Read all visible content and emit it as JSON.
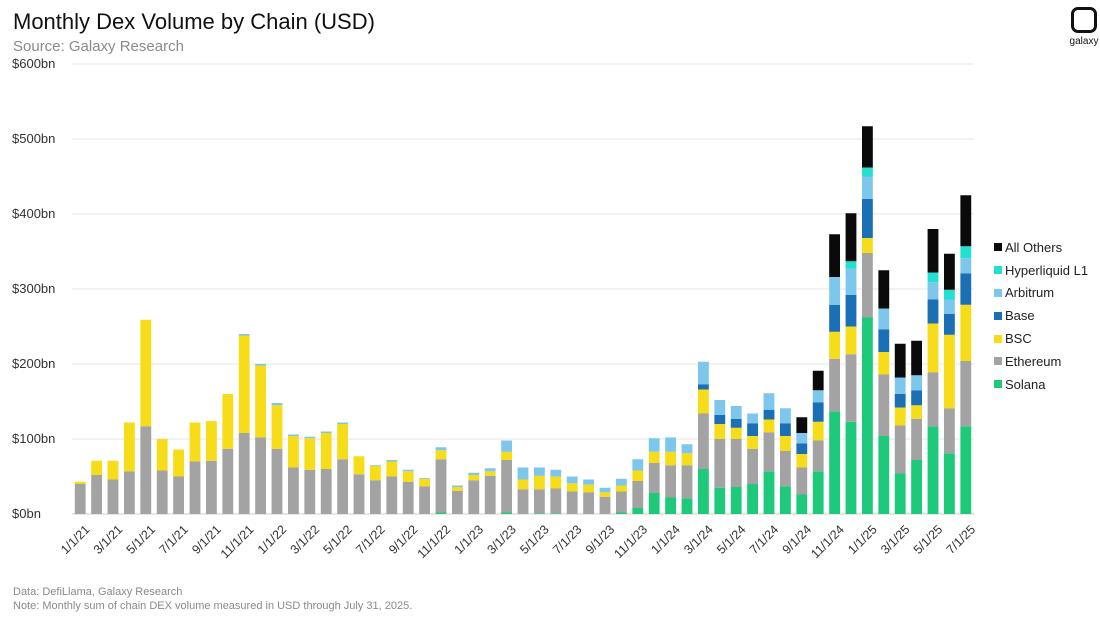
{
  "header": {
    "title": "Monthly Dex Volume by Chain (USD)",
    "subtitle": "Source: Galaxy Research",
    "logo_text": "galaxy"
  },
  "footer": {
    "data_note": "Data: DefiLlama, Galaxy Research",
    "note": "Note: Monthly sum of chain DEX volume measured in USD  through July 31, 2025."
  },
  "chart_data": {
    "type": "bar",
    "stacked": true,
    "title": "Monthly Dex Volume by Chain (USD)",
    "ylim": [
      0,
      600
    ],
    "y_ticks": [
      0,
      100,
      200,
      300,
      400,
      500,
      600
    ],
    "y_tick_labels": [
      "$0bn",
      "$100bn",
      "$200bn",
      "$300bn",
      "$400bn",
      "$500bn",
      "$600bn"
    ],
    "gridlines": true,
    "legend_position": "right",
    "categories": [
      "1/1/21",
      "2/1/21",
      "3/1/21",
      "4/1/21",
      "5/1/21",
      "6/1/21",
      "7/1/21",
      "8/1/21",
      "9/1/21",
      "10/1/21",
      "11/1/21",
      "12/1/21",
      "1/1/22",
      "2/1/22",
      "3/1/22",
      "4/1/22",
      "5/1/22",
      "6/1/22",
      "7/1/22",
      "8/1/22",
      "9/1/22",
      "10/1/22",
      "11/1/22",
      "12/1/22",
      "1/1/23",
      "2/1/23",
      "3/1/23",
      "4/1/23",
      "5/1/23",
      "6/1/23",
      "7/1/23",
      "8/1/23",
      "9/1/23",
      "10/1/23",
      "11/1/23",
      "12/1/23",
      "1/1/24",
      "2/1/24",
      "3/1/24",
      "4/1/24",
      "5/1/24",
      "6/1/24",
      "7/1/24",
      "8/1/24",
      "9/1/24",
      "10/1/24",
      "11/1/24",
      "12/1/24",
      "1/1/25",
      "2/1/25",
      "3/1/25",
      "4/1/25",
      "5/1/25",
      "6/1/25",
      "7/1/25"
    ],
    "x_tick_labels": [
      "1/1/21",
      "3/1/21",
      "5/1/21",
      "7/1/21",
      "9/1/21",
      "11/1/21",
      "1/1/22",
      "3/1/22",
      "5/1/22",
      "7/1/22",
      "9/1/22",
      "11/1/22",
      "1/1/23",
      "3/1/23",
      "5/1/23",
      "7/1/23",
      "9/1/23",
      "11/1/23",
      "1/1/24",
      "3/1/24",
      "5/1/24",
      "7/1/24",
      "9/1/24",
      "11/1/24",
      "1/1/25",
      "3/1/25",
      "5/1/25",
      "7/1/25"
    ],
    "series": [
      {
        "name": "Solana",
        "color": "#1ec97a",
        "values": [
          0,
          0,
          0,
          0,
          0,
          0,
          0,
          0,
          0,
          0,
          0,
          0,
          0,
          0,
          0,
          0,
          0,
          0,
          0,
          0,
          0,
          0,
          2,
          0,
          0,
          0,
          2,
          0,
          1,
          1,
          0,
          0,
          0,
          2,
          8,
          28,
          22,
          21,
          60,
          35,
          36,
          40,
          57,
          37,
          26,
          57,
          137,
          123,
          262,
          104,
          54,
          72,
          117,
          81,
          117
        ]
      },
      {
        "name": "Ethereum",
        "color": "#a3a3a3",
        "values": [
          40,
          52,
          46,
          57,
          117,
          58,
          50,
          70,
          71,
          87,
          108,
          102,
          87,
          62,
          59,
          60,
          73,
          53,
          45,
          50,
          43,
          37,
          71,
          31,
          45,
          51,
          70,
          33,
          32,
          33,
          30,
          29,
          23,
          28,
          36,
          40,
          43,
          44,
          74,
          65,
          64,
          47,
          52,
          47,
          36,
          41,
          70,
          90,
          86,
          82,
          64,
          55,
          72,
          60,
          87
        ]
      },
      {
        "name": "BSC",
        "color": "#f7dc19",
        "values": [
          3,
          19,
          25,
          65,
          142,
          42,
          36,
          52,
          53,
          73,
          130,
          96,
          58,
          42,
          42,
          48,
          47,
          24,
          19,
          20,
          14,
          10,
          12,
          5,
          7,
          6,
          11,
          13,
          18,
          16,
          11,
          10,
          6,
          8,
          14,
          15,
          18,
          16,
          32,
          20,
          15,
          17,
          17,
          20,
          18,
          25,
          36,
          37,
          20,
          30,
          24,
          18,
          65,
          98,
          75
        ]
      },
      {
        "name": "Base",
        "color": "#1a6fb5",
        "values": [
          0,
          0,
          0,
          0,
          0,
          0,
          0,
          0,
          0,
          0,
          0,
          0,
          0,
          0,
          0,
          0,
          0,
          0,
          0,
          0,
          0,
          0,
          0,
          0,
          0,
          0,
          0,
          0,
          0,
          0,
          0,
          0,
          0,
          0,
          0,
          0,
          0,
          0,
          7,
          12,
          12,
          17,
          13,
          17,
          14,
          26,
          36,
          42,
          52,
          30,
          18,
          20,
          32,
          28,
          42
        ]
      },
      {
        "name": "Arbitrum",
        "color": "#7dc6ec",
        "values": [
          0,
          0,
          0,
          0,
          0,
          0,
          0,
          0,
          0,
          0,
          2,
          2,
          3,
          2,
          2,
          2,
          2,
          0,
          1,
          2,
          2,
          1,
          4,
          2,
          3,
          4,
          15,
          16,
          11,
          9,
          9,
          7,
          6,
          9,
          15,
          18,
          19,
          12,
          30,
          20,
          17,
          13,
          22,
          20,
          14,
          16,
          37,
          35,
          30,
          28,
          22,
          20,
          23,
          19,
          20
        ]
      },
      {
        "name": "Hyperliquid L1",
        "color": "#23e0d0",
        "values": [
          0,
          0,
          0,
          0,
          0,
          0,
          0,
          0,
          0,
          0,
          0,
          0,
          0,
          0,
          0,
          0,
          0,
          0,
          0,
          0,
          0,
          0,
          0,
          0,
          0,
          0,
          0,
          0,
          0,
          0,
          0,
          0,
          0,
          0,
          0,
          0,
          0,
          0,
          0,
          0,
          0,
          0,
          0,
          0,
          0,
          0,
          0,
          10,
          12,
          0,
          0,
          0,
          13,
          13,
          16
        ]
      },
      {
        "name": "All Others",
        "color": "#0a0a0a",
        "values": [
          0,
          0,
          0,
          0,
          0,
          0,
          0,
          0,
          0,
          0,
          0,
          0,
          0,
          0,
          0,
          0,
          0,
          0,
          0,
          0,
          0,
          0,
          0,
          0,
          0,
          0,
          0,
          0,
          0,
          0,
          0,
          0,
          0,
          0,
          0,
          0,
          0,
          0,
          0,
          0,
          0,
          0,
          0,
          0,
          21,
          26,
          57,
          64,
          55,
          51,
          45,
          46,
          58,
          48,
          68
        ]
      }
    ],
    "legend": [
      "All Others",
      "Hyperliquid L1",
      "Arbitrum",
      "Base",
      "BSC",
      "Ethereum",
      "Solana"
    ]
  }
}
